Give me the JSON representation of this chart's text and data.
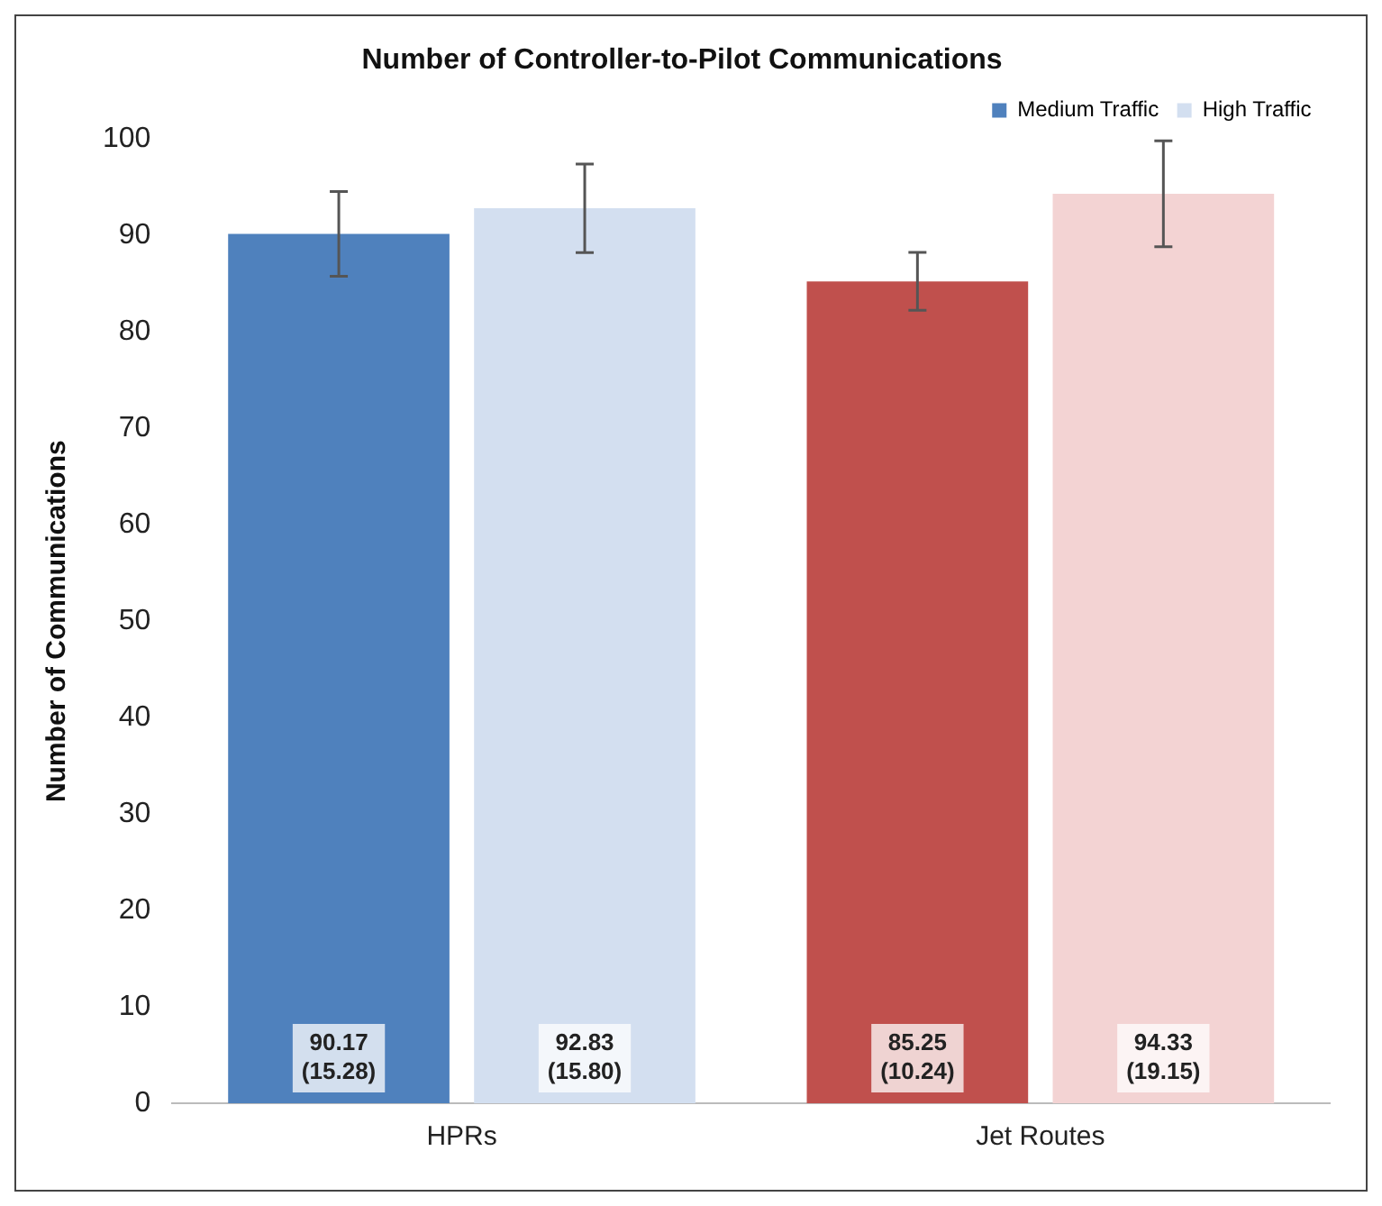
{
  "chart_data": {
    "type": "bar",
    "title": "Number of Controller-to-Pilot Communications",
    "ylabel": "Number of Communications",
    "categories": [
      "HPRs",
      "Jet Routes"
    ],
    "series": [
      {
        "name": "Medium Traffic",
        "colors": [
          "#4f81bd",
          "#c0504d"
        ],
        "values": [
          90.17,
          85.25
        ],
        "errors": [
          4.4,
          3.0
        ],
        "value_labels": [
          "90.17\n(15.28)",
          "85.25\n(10.24)"
        ]
      },
      {
        "name": "High Traffic",
        "colors": [
          "#d3dff0",
          "#f3d3d3"
        ],
        "values": [
          92.83,
          94.33
        ],
        "errors": [
          4.6,
          5.5
        ],
        "value_labels": [
          "92.83\n(15.80)",
          "94.33\n(19.15)"
        ]
      }
    ],
    "ylim": [
      0,
      100
    ],
    "yticks": [
      0,
      10,
      20,
      30,
      40,
      50,
      60,
      70,
      80,
      90,
      100
    ],
    "grid": false,
    "legend": "top right"
  }
}
